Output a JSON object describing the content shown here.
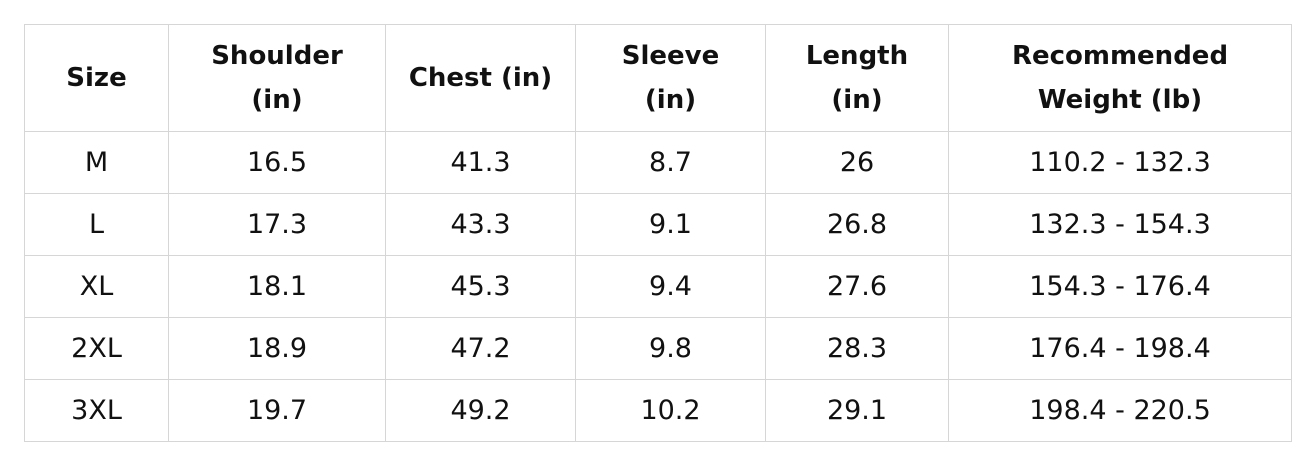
{
  "table": {
    "headers": [
      "Size",
      "Shoulder (in)",
      "Chest (in)",
      "Sleeve (in)",
      "Length (in)",
      "Recommended Weight (lb)"
    ],
    "rows": [
      [
        "M",
        16.5,
        41.3,
        8.7,
        26,
        "110.2 - 132.3"
      ],
      [
        "L",
        17.3,
        43.3,
        9.1,
        26.8,
        "132.3 - 154.3"
      ],
      [
        "XL",
        18.1,
        45.3,
        9.4,
        27.6,
        "154.3 - 176.4"
      ],
      [
        "2XL",
        18.9,
        47.2,
        9.8,
        28.3,
        "176.4 - 198.4"
      ],
      [
        "3XL",
        19.7,
        49.2,
        10.2,
        29.1,
        "198.4 - 220.5"
      ]
    ]
  }
}
